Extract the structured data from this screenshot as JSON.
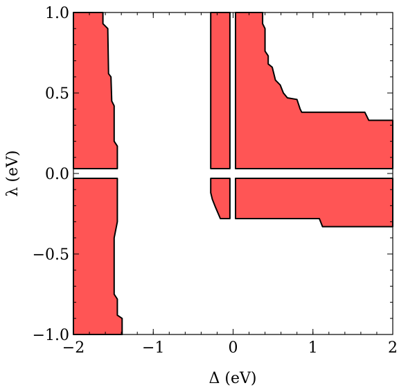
{
  "chart_data": {
    "type": "region",
    "xlabel": "Δ (eV)",
    "ylabel": "λ (eV)",
    "xlim": [
      -2,
      2
    ],
    "ylim": [
      -1,
      1
    ],
    "x_ticks": [
      {
        "value": -2,
        "label": "−2"
      },
      {
        "value": -1,
        "label": "−1"
      },
      {
        "value": 0,
        "label": "0"
      },
      {
        "value": 1,
        "label": "1"
      },
      {
        "value": 2,
        "label": "2"
      }
    ],
    "y_ticks": [
      {
        "value": -1,
        "label": "−1.0"
      },
      {
        "value": -0.5,
        "label": "−0.5"
      },
      {
        "value": 0,
        "label": "0.0"
      },
      {
        "value": 0.5,
        "label": "0.5"
      },
      {
        "value": 1,
        "label": "1.0"
      }
    ],
    "fill_color": "#ff5555",
    "regions": [
      {
        "name": "left-upper",
        "points": [
          [
            -2,
            1
          ],
          [
            -1.63,
            1
          ],
          [
            -1.63,
            0.93
          ],
          [
            -1.57,
            0.9
          ],
          [
            -1.56,
            0.62
          ],
          [
            -1.53,
            0.6
          ],
          [
            -1.52,
            0.45
          ],
          [
            -1.49,
            0.42
          ],
          [
            -1.49,
            0.2
          ],
          [
            -1.45,
            0.17
          ],
          [
            -1.45,
            0.03
          ],
          [
            -2,
            0.03
          ]
        ]
      },
      {
        "name": "left-lower",
        "points": [
          [
            -2,
            -0.03
          ],
          [
            -1.45,
            -0.03
          ],
          [
            -1.45,
            -0.3
          ],
          [
            -1.47,
            -0.35
          ],
          [
            -1.49,
            -0.4
          ],
          [
            -1.49,
            -0.75
          ],
          [
            -1.45,
            -0.78
          ],
          [
            -1.45,
            -0.88
          ],
          [
            -1.39,
            -0.9
          ],
          [
            -1.39,
            -1
          ],
          [
            -2,
            -1
          ]
        ]
      },
      {
        "name": "center-upper",
        "points": [
          [
            -0.28,
            1
          ],
          [
            -0.04,
            1
          ],
          [
            -0.04,
            0.03
          ],
          [
            -0.28,
            0.03
          ]
        ]
      },
      {
        "name": "center-lower",
        "points": [
          [
            -0.28,
            -0.03
          ],
          [
            -0.04,
            -0.03
          ],
          [
            -0.04,
            -0.28
          ],
          [
            -0.16,
            -0.28
          ],
          [
            -0.22,
            -0.21
          ],
          [
            -0.26,
            -0.16
          ],
          [
            -0.28,
            -0.12
          ]
        ]
      },
      {
        "name": "right-upper",
        "points": [
          [
            0.03,
            1
          ],
          [
            0.37,
            1
          ],
          [
            0.37,
            0.93
          ],
          [
            0.4,
            0.9
          ],
          [
            0.4,
            0.76
          ],
          [
            0.44,
            0.73
          ],
          [
            0.44,
            0.68
          ],
          [
            0.49,
            0.66
          ],
          [
            0.53,
            0.58
          ],
          [
            0.59,
            0.55
          ],
          [
            0.63,
            0.5
          ],
          [
            0.68,
            0.47
          ],
          [
            0.8,
            0.46
          ],
          [
            0.84,
            0.4
          ],
          [
            0.86,
            0.38
          ],
          [
            1.65,
            0.38
          ],
          [
            1.7,
            0.33
          ],
          [
            2,
            0.33
          ],
          [
            2,
            0.03
          ],
          [
            0.03,
            0.03
          ]
        ]
      },
      {
        "name": "right-lower",
        "points": [
          [
            0.03,
            -0.03
          ],
          [
            2,
            -0.03
          ],
          [
            2,
            -0.33
          ],
          [
            1.12,
            -0.33
          ],
          [
            1.08,
            -0.28
          ],
          [
            0.03,
            -0.28
          ]
        ]
      }
    ]
  }
}
